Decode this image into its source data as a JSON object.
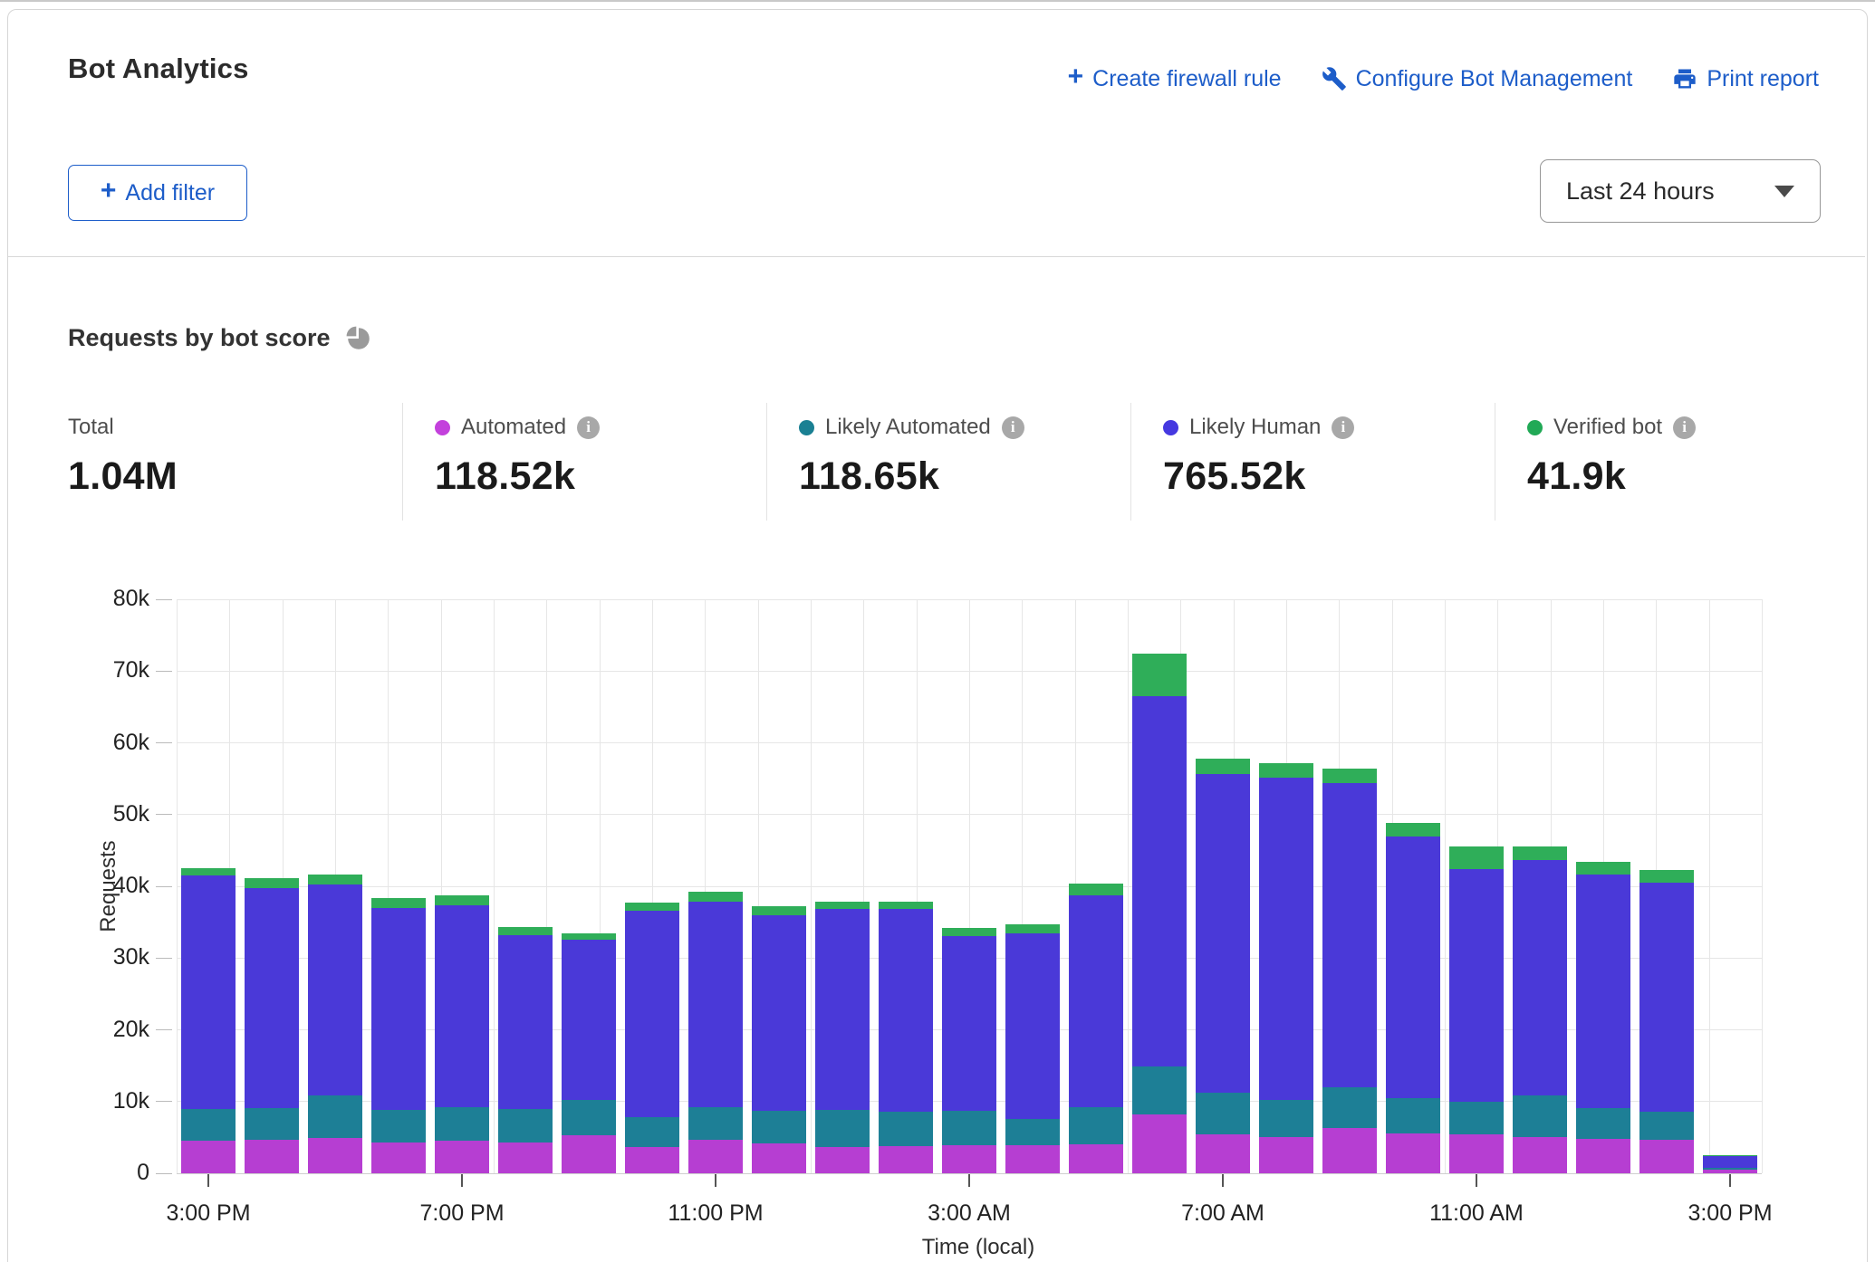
{
  "header": {
    "title": "Bot Analytics",
    "actions": [
      {
        "label": "Create firewall rule",
        "icon": "plus-icon"
      },
      {
        "label": "Configure Bot Management",
        "icon": "wrench-icon"
      },
      {
        "label": "Print report",
        "icon": "printer-icon"
      }
    ],
    "add_filter_label": "Add filter",
    "time_range_value": "Last 24 hours"
  },
  "section": {
    "title": "Requests by bot score",
    "icon": "pie-chart-icon"
  },
  "stats": {
    "total": {
      "label": "Total",
      "value": "1.04M"
    },
    "items": [
      {
        "label": "Automated",
        "value": "118.52k",
        "color": "#c341dc"
      },
      {
        "label": "Likely Automated",
        "value": "118.65k",
        "color": "#1a8093"
      },
      {
        "label": "Likely Human",
        "value": "765.52k",
        "color": "#4538e0"
      },
      {
        "label": "Verified bot",
        "value": "41.9k",
        "color": "#21a956"
      }
    ]
  },
  "chart_data": {
    "type": "bar",
    "stacked": true,
    "title": "Requests by bot score",
    "xlabel": "Time (local)",
    "ylabel": "Requests",
    "ylim": [
      0,
      80000
    ],
    "unit": "thousands of requests per hour",
    "grid": true,
    "legend_position": "stats-row-above-chart",
    "y_tick_labels": [
      "0",
      "10k",
      "20k",
      "30k",
      "40k",
      "50k",
      "60k",
      "70k",
      "80k"
    ],
    "x": [
      "3:00 PM",
      "4:00 PM",
      "5:00 PM",
      "6:00 PM",
      "7:00 PM",
      "8:00 PM",
      "9:00 PM",
      "10:00 PM",
      "11:00 PM",
      "12:00 AM",
      "1:00 AM",
      "2:00 AM",
      "3:00 AM",
      "4:00 AM",
      "5:00 AM",
      "6:00 AM",
      "7:00 AM",
      "8:00 AM",
      "9:00 AM",
      "10:00 AM",
      "11:00 AM",
      "12:00 PM",
      "1:00 PM",
      "2:00 PM",
      "3:00 PM"
    ],
    "x_tick_labels": [
      "3:00 PM",
      "7:00 PM",
      "11:00 PM",
      "3:00 AM",
      "7:00 AM",
      "11:00 AM",
      "3:00 PM"
    ],
    "x_tick_indices": [
      0,
      4,
      8,
      12,
      16,
      20,
      24
    ],
    "series": [
      {
        "name": "Automated",
        "color": "#b63ed2",
        "values": [
          4.6,
          4.7,
          4.9,
          4.3,
          4.6,
          4.3,
          5.3,
          3.6,
          4.7,
          4.2,
          3.7,
          3.8,
          3.9,
          3.9,
          4.0,
          8.2,
          5.4,
          5.1,
          6.3,
          5.6,
          5.4,
          5.1,
          4.8,
          4.7,
          0.5
        ]
      },
      {
        "name": "Likely Automated",
        "color": "#1d7f96",
        "values": [
          4.4,
          4.4,
          5.9,
          4.5,
          4.6,
          4.6,
          4.9,
          4.2,
          4.5,
          4.5,
          5.1,
          4.8,
          4.8,
          3.7,
          5.2,
          6.7,
          5.8,
          5.1,
          5.7,
          4.9,
          4.6,
          5.8,
          4.3,
          3.9,
          0.3
        ]
      },
      {
        "name": "Likely Human",
        "color": "#4a39d8",
        "values": [
          32.5,
          30.6,
          29.4,
          28.2,
          28.1,
          24.3,
          22.3,
          28.8,
          28.7,
          27.3,
          28.0,
          28.2,
          24.4,
          25.9,
          29.5,
          51.6,
          44.5,
          44.9,
          42.4,
          36.4,
          32.4,
          32.8,
          32.5,
          31.9,
          1.6
        ]
      },
      {
        "name": "Verified bot",
        "color": "#2fae59",
        "values": [
          1.0,
          1.4,
          1.5,
          1.4,
          1.4,
          1.1,
          1.0,
          1.1,
          1.3,
          1.2,
          1.1,
          1.1,
          1.1,
          1.2,
          1.7,
          5.9,
          2.1,
          2.1,
          2.0,
          1.9,
          3.1,
          1.9,
          1.8,
          1.8,
          0.1
        ]
      }
    ]
  }
}
